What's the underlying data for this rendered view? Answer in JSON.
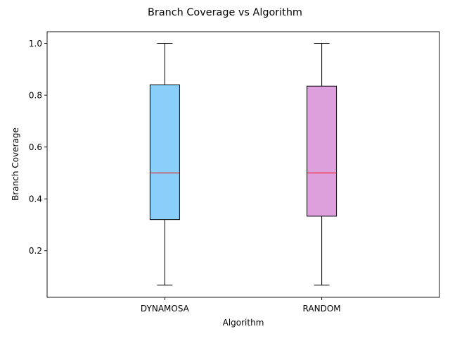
{
  "chart_data": {
    "type": "box",
    "title": "Branch Coverage vs Algorithm",
    "xlabel": "Algorithm",
    "ylabel": "Branch Coverage",
    "ylim": [
      0.02,
      1.045
    ],
    "y_ticks": [
      0.2,
      0.4,
      0.6,
      0.8,
      1.0
    ],
    "y_tick_labels": [
      "0.2",
      "0.4",
      "0.6",
      "0.8",
      "1.0"
    ],
    "categories": [
      "DYNAMOSA",
      "RANDOM"
    ],
    "boxes": [
      {
        "category": "DYNAMOSA",
        "whisker_low": 0.067,
        "q1": 0.32,
        "median": 0.5,
        "q3": 0.84,
        "whisker_high": 1.0,
        "color": "#8ACEFA"
      },
      {
        "category": "RANDOM",
        "whisker_low": 0.067,
        "q1": 0.333,
        "median": 0.5,
        "q3": 0.835,
        "whisker_high": 1.0,
        "color": "#DDA0DD"
      }
    ],
    "median_color": "#FF0000",
    "grid": false,
    "legend": "none"
  }
}
